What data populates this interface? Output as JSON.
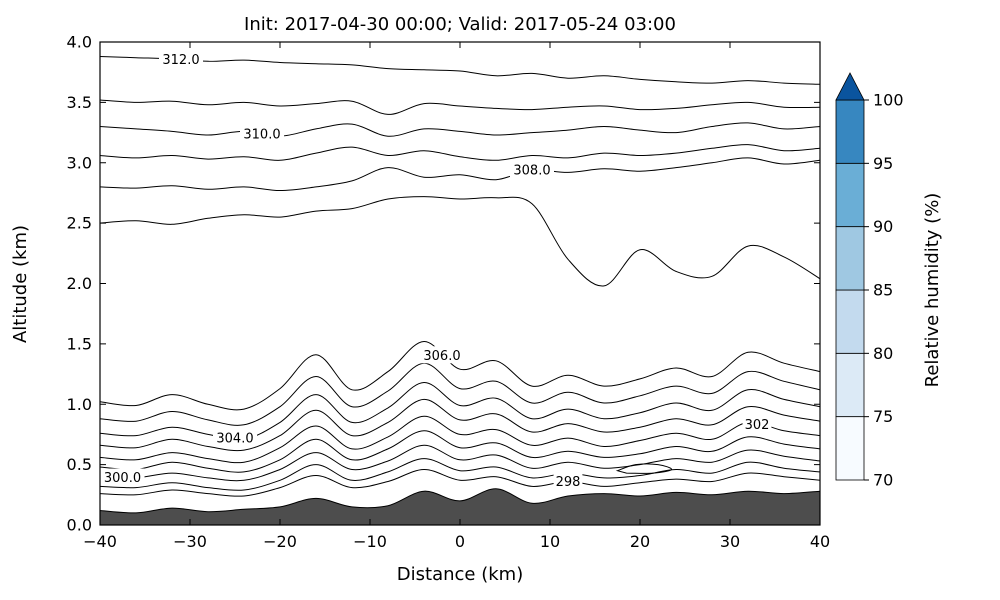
{
  "chart_data": {
    "type": "contour",
    "title": "Init: 2017-04-30 00:00; Valid: 2017-05-24 03:00",
    "xlabel": "Distance (km)",
    "ylabel": "Altitude (km)",
    "xlim": [
      -40,
      40
    ],
    "ylim": [
      0,
      4
    ],
    "grid": false,
    "xticks": {
      "values": [
        -40,
        -30,
        -20,
        -10,
        0,
        10,
        20,
        30,
        40
      ],
      "labels": [
        "−40",
        "−30",
        "−20",
        "−10",
        "0",
        "10",
        "20",
        "30",
        "40"
      ]
    },
    "yticks": {
      "values": [
        0,
        0.5,
        1,
        1.5,
        2,
        2.5,
        3,
        3.5,
        4
      ],
      "labels": [
        "0.0",
        "0.5",
        "1.0",
        "1.5",
        "2.0",
        "2.5",
        "3.0",
        "3.5",
        "4.0"
      ]
    },
    "x": [
      -40,
      -36,
      -32,
      -28,
      -24,
      -20,
      -16,
      -12,
      -8,
      -4,
      0,
      4,
      8,
      12,
      16,
      20,
      24,
      28,
      32,
      36,
      40
    ],
    "contours": [
      {
        "level": 298,
        "label": "298",
        "label_x": 12,
        "alts": [
          0.26,
          0.25,
          0.29,
          0.26,
          0.24,
          0.31,
          0.41,
          0.31,
          0.36,
          0.46,
          0.37,
          0.4,
          0.32,
          0.36,
          0.32,
          0.35,
          0.38,
          0.36,
          0.43,
          0.4,
          0.37
        ]
      },
      {
        "level": 299,
        "alts": [
          0.32,
          0.31,
          0.35,
          0.31,
          0.29,
          0.37,
          0.5,
          0.37,
          0.44,
          0.55,
          0.45,
          0.48,
          0.39,
          0.43,
          0.39,
          0.41,
          0.46,
          0.43,
          0.52,
          0.47,
          0.44
        ]
      },
      {
        "level": 300,
        "label": "300.0",
        "label_x": -37.5,
        "alts": [
          0.4,
          0.39,
          0.43,
          0.39,
          0.37,
          0.46,
          0.6,
          0.46,
          0.53,
          0.66,
          0.54,
          0.58,
          0.47,
          0.52,
          0.47,
          0.5,
          0.55,
          0.52,
          0.62,
          0.57,
          0.53
        ]
      },
      {
        "level": 301,
        "alts": [
          0.48,
          0.46,
          0.52,
          0.47,
          0.44,
          0.54,
          0.71,
          0.54,
          0.63,
          0.78,
          0.64,
          0.68,
          0.56,
          0.61,
          0.56,
          0.59,
          0.65,
          0.61,
          0.73,
          0.67,
          0.63
        ]
      },
      {
        "level": 302,
        "label": "302",
        "label_x": 33,
        "alts": [
          0.56,
          0.54,
          0.6,
          0.55,
          0.52,
          0.64,
          0.82,
          0.63,
          0.73,
          0.9,
          0.75,
          0.79,
          0.66,
          0.72,
          0.65,
          0.7,
          0.76,
          0.71,
          0.85,
          0.78,
          0.74
        ]
      },
      {
        "level": 303,
        "alts": [
          0.66,
          0.64,
          0.71,
          0.65,
          0.62,
          0.74,
          0.95,
          0.74,
          0.85,
          1.04,
          0.87,
          0.92,
          0.77,
          0.84,
          0.77,
          0.81,
          0.88,
          0.83,
          0.98,
          0.91,
          0.86
        ]
      },
      {
        "level": 304,
        "label": "304.0",
        "label_x": -25,
        "alts": [
          0.76,
          0.74,
          0.81,
          0.75,
          0.71,
          0.85,
          1.08,
          0.85,
          0.97,
          1.18,
          0.99,
          1.05,
          0.88,
          0.96,
          0.88,
          0.93,
          1.01,
          0.95,
          1.12,
          1.04,
          0.98
        ]
      },
      {
        "level": 305,
        "alts": [
          0.88,
          0.86,
          0.94,
          0.87,
          0.83,
          0.98,
          1.23,
          0.98,
          1.11,
          1.34,
          1.13,
          1.19,
          1.01,
          1.1,
          1.01,
          1.07,
          1.15,
          1.09,
          1.27,
          1.19,
          1.12
        ]
      },
      {
        "level": 306,
        "label": "306.0",
        "label_x": -2,
        "alts": [
          1.02,
          0.99,
          1.08,
          1.0,
          0.96,
          1.13,
          1.41,
          1.12,
          1.27,
          1.52,
          1.29,
          1.36,
          1.15,
          1.24,
          1.15,
          1.21,
          1.3,
          1.23,
          1.43,
          1.34,
          1.27
        ]
      },
      {
        "level": 307,
        "alts": [
          2.5,
          2.52,
          2.49,
          2.54,
          2.57,
          2.55,
          2.6,
          2.62,
          2.7,
          2.72,
          2.7,
          2.71,
          2.66,
          2.2,
          1.98,
          2.28,
          2.1,
          2.06,
          2.31,
          2.22,
          2.04
        ]
      },
      {
        "level": 308,
        "label": "308.0",
        "label_x": 8,
        "alts": [
          2.8,
          2.79,
          2.81,
          2.78,
          2.8,
          2.77,
          2.8,
          2.85,
          2.96,
          2.88,
          2.9,
          2.86,
          2.94,
          2.92,
          2.95,
          2.93,
          2.96,
          3.0,
          3.04,
          2.99,
          3.02
        ]
      },
      {
        "level": 309,
        "alts": [
          3.06,
          3.04,
          3.06,
          3.03,
          3.05,
          3.02,
          3.08,
          3.13,
          3.06,
          3.1,
          3.05,
          3.02,
          3.06,
          3.04,
          3.08,
          3.06,
          3.08,
          3.12,
          3.15,
          3.1,
          3.12
        ]
      },
      {
        "level": 310,
        "label": "310.0",
        "label_x": -22,
        "alts": [
          3.3,
          3.28,
          3.26,
          3.23,
          3.26,
          3.22,
          3.28,
          3.32,
          3.22,
          3.28,
          3.26,
          3.23,
          3.25,
          3.27,
          3.3,
          3.27,
          3.25,
          3.3,
          3.33,
          3.28,
          3.3
        ]
      },
      {
        "level": 311,
        "alts": [
          3.52,
          3.5,
          3.51,
          3.48,
          3.5,
          3.47,
          3.49,
          3.51,
          3.4,
          3.49,
          3.47,
          3.45,
          3.44,
          3.46,
          3.47,
          3.44,
          3.45,
          3.48,
          3.5,
          3.46,
          3.46
        ]
      },
      {
        "level": 312,
        "label": "312.0",
        "label_x": -31,
        "alts": [
          3.88,
          3.87,
          3.86,
          3.84,
          3.85,
          3.83,
          3.82,
          3.81,
          3.78,
          3.77,
          3.76,
          3.72,
          3.74,
          3.7,
          3.72,
          3.69,
          3.67,
          3.66,
          3.68,
          3.66,
          3.65
        ]
      },
      {
        "level": 299,
        "closed": true,
        "x": [
          17.5,
          19.5,
          22,
          23.5,
          21.5,
          18.5
        ],
        "alts": [
          0.45,
          0.5,
          0.5,
          0.46,
          0.43,
          0.43
        ]
      }
    ],
    "terrain": {
      "color": "#4d4d4d",
      "alts": [
        0.12,
        0.1,
        0.14,
        0.11,
        0.13,
        0.15,
        0.22,
        0.15,
        0.16,
        0.28,
        0.2,
        0.3,
        0.18,
        0.24,
        0.26,
        0.24,
        0.27,
        0.25,
        0.28,
        0.26,
        0.28
      ]
    },
    "colorbar": {
      "label": "Relative humidity (%)",
      "vmin": 70,
      "vmax": 100,
      "ticks": [
        70,
        75,
        80,
        85,
        90,
        95,
        100
      ],
      "colors": [
        "#f7fbff",
        "#dceaf6",
        "#c3daee",
        "#9fc8e2",
        "#6aaed6",
        "#3787c0"
      ],
      "extend_color": "#0a549e"
    }
  }
}
